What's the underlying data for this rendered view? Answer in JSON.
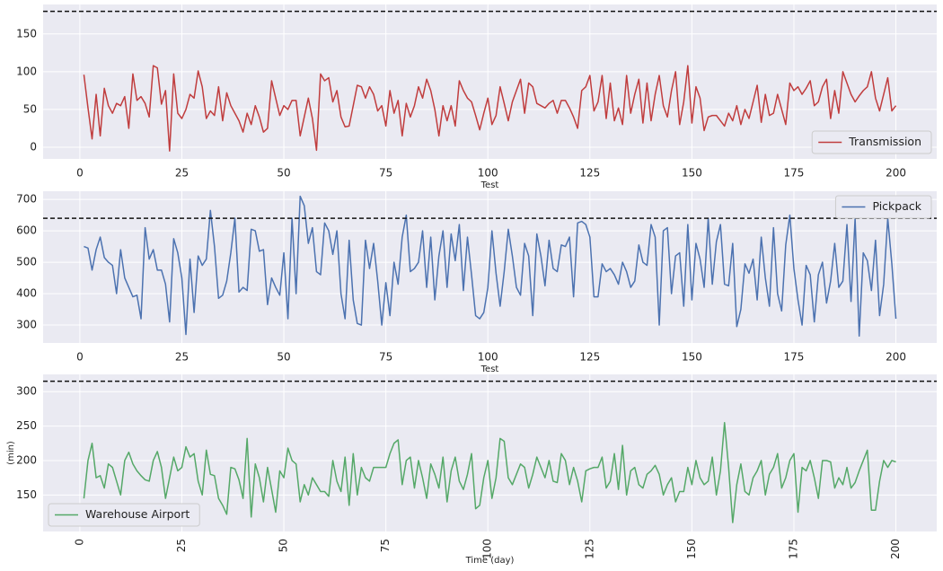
{
  "chart_data": [
    {
      "type": "line",
      "xlabel": "Test",
      "legend": "lower right",
      "grid": true,
      "hline": 180,
      "xlim": [
        -9,
        210
      ],
      "xticks": [
        0,
        25,
        50,
        75,
        100,
        125,
        150,
        175,
        200
      ],
      "ylim": [
        -15.5,
        189
      ],
      "yticks": [
        0,
        50,
        100,
        150
      ],
      "x": [
        1,
        2,
        3,
        4,
        5,
        6,
        7,
        8,
        9,
        10,
        11,
        12,
        13,
        14,
        15,
        16,
        17,
        18,
        19,
        20,
        21,
        22,
        23,
        24,
        25,
        26,
        27,
        28,
        29,
        30,
        31,
        32,
        33,
        34,
        35,
        36,
        37,
        38,
        39,
        40,
        41,
        42,
        43,
        44,
        45,
        46,
        47,
        48,
        49,
        50,
        51,
        52,
        53,
        54,
        55,
        56,
        57,
        58,
        59,
        60,
        61,
        62,
        63,
        64,
        65,
        66,
        67,
        68,
        69,
        70,
        71,
        72,
        73,
        74,
        75,
        76,
        77,
        78,
        79,
        80,
        81,
        82,
        83,
        84,
        85,
        86,
        87,
        88,
        89,
        90,
        91,
        92,
        93,
        94,
        95,
        96,
        97,
        98,
        99,
        100,
        101,
        102,
        103,
        104,
        105,
        106,
        107,
        108,
        109,
        110,
        111,
        112,
        113,
        114,
        115,
        116,
        117,
        118,
        119,
        120,
        121,
        122,
        123,
        124,
        125,
        126,
        127,
        128,
        129,
        130,
        131,
        132,
        133,
        134,
        135,
        136,
        137,
        138,
        139,
        140,
        141,
        142,
        143,
        144,
        145,
        146,
        147,
        148,
        149,
        150,
        151,
        152,
        153,
        154,
        155,
        156,
        157,
        158,
        159,
        160,
        161,
        162,
        163,
        164,
        165,
        166,
        167,
        168,
        169,
        170,
        171,
        172,
        173,
        174,
        175,
        176,
        177,
        178,
        179,
        180,
        181,
        182,
        183,
        184,
        185,
        186,
        187,
        188,
        189,
        190,
        191,
        192,
        193,
        194,
        195,
        196,
        197,
        198,
        199,
        200
      ],
      "series": [
        {
          "name": "Transmission",
          "color": "#c03d3e",
          "values": [
            96,
            52,
            11,
            70,
            15,
            78,
            55,
            45,
            58,
            55,
            67,
            25,
            97,
            62,
            67,
            58,
            40,
            108,
            105,
            57,
            75,
            -5,
            97,
            45,
            38,
            50,
            70,
            65,
            101,
            80,
            38,
            48,
            42,
            80,
            35,
            72,
            55,
            45,
            35,
            20,
            45,
            30,
            55,
            40,
            20,
            25,
            88,
            65,
            42,
            55,
            50,
            62,
            62,
            15,
            40,
            65,
            38,
            -4,
            97,
            88,
            92,
            60,
            75,
            40,
            27,
            28,
            55,
            82,
            80,
            65,
            80,
            70,
            48,
            55,
            28,
            75,
            45,
            62,
            15,
            58,
            40,
            55,
            80,
            65,
            90,
            75,
            50,
            15,
            55,
            35,
            55,
            28,
            88,
            75,
            65,
            60,
            42,
            23,
            45,
            65,
            30,
            42,
            80,
            58,
            35,
            60,
            75,
            90,
            45,
            85,
            80,
            58,
            55,
            52,
            58,
            62,
            45,
            62,
            62,
            52,
            40,
            25,
            75,
            80,
            95,
            48,
            60,
            95,
            38,
            85,
            35,
            52,
            30,
            95,
            45,
            70,
            90,
            32,
            85,
            35,
            70,
            95,
            55,
            40,
            75,
            100,
            30,
            60,
            108,
            32,
            80,
            65,
            22,
            40,
            42,
            42,
            35,
            28,
            45,
            35,
            55,
            30,
            50,
            38,
            60,
            82,
            33,
            70,
            42,
            45,
            70,
            50,
            30,
            85,
            75,
            80,
            70,
            78,
            88,
            55,
            60,
            80,
            90,
            38,
            75,
            45,
            100,
            85,
            70,
            60,
            68,
            75,
            80,
            100,
            65,
            48,
            70,
            92,
            48,
            55
          ]
        }
      ]
    },
    {
      "type": "line",
      "xlabel": "Test",
      "legend": "upper right",
      "grid": true,
      "hline": 640,
      "xlim": [
        -9,
        210
      ],
      "xticks": [
        0,
        25,
        50,
        75,
        100,
        125,
        150,
        175,
        200
      ],
      "ylim": [
        243,
        726
      ],
      "yticks": [
        300,
        400,
        500,
        600,
        700
      ],
      "x": [
        1,
        2,
        3,
        4,
        5,
        6,
        7,
        8,
        9,
        10,
        11,
        12,
        13,
        14,
        15,
        16,
        17,
        18,
        19,
        20,
        21,
        22,
        23,
        24,
        25,
        26,
        27,
        28,
        29,
        30,
        31,
        32,
        33,
        34,
        35,
        36,
        37,
        38,
        39,
        40,
        41,
        42,
        43,
        44,
        45,
        46,
        47,
        48,
        49,
        50,
        51,
        52,
        53,
        54,
        55,
        56,
        57,
        58,
        59,
        60,
        61,
        62,
        63,
        64,
        65,
        66,
        67,
        68,
        69,
        70,
        71,
        72,
        73,
        74,
        75,
        76,
        77,
        78,
        79,
        80,
        81,
        82,
        83,
        84,
        85,
        86,
        87,
        88,
        89,
        90,
        91,
        92,
        93,
        94,
        95,
        96,
        97,
        98,
        99,
        100,
        101,
        102,
        103,
        104,
        105,
        106,
        107,
        108,
        109,
        110,
        111,
        112,
        113,
        114,
        115,
        116,
        117,
        118,
        119,
        120,
        121,
        122,
        123,
        124,
        125,
        126,
        127,
        128,
        129,
        130,
        131,
        132,
        133,
        134,
        135,
        136,
        137,
        138,
        139,
        140,
        141,
        142,
        143,
        144,
        145,
        146,
        147,
        148,
        149,
        150,
        151,
        152,
        153,
        154,
        155,
        156,
        157,
        158,
        159,
        160,
        161,
        162,
        163,
        164,
        165,
        166,
        167,
        168,
        169,
        170,
        171,
        172,
        173,
        174,
        175,
        176,
        177,
        178,
        179,
        180,
        181,
        182,
        183,
        184,
        185,
        186,
        187,
        188,
        189,
        190,
        191,
        192,
        193,
        194,
        195,
        196,
        197,
        198,
        199,
        200
      ],
      "series": [
        {
          "name": "Pickpack",
          "color": "#4c72b0",
          "values": [
            550,
            545,
            475,
            540,
            580,
            515,
            500,
            490,
            400,
            540,
            450,
            420,
            390,
            395,
            320,
            610,
            510,
            540,
            475,
            475,
            430,
            310,
            575,
            530,
            450,
            270,
            510,
            340,
            520,
            490,
            510,
            665,
            550,
            385,
            395,
            440,
            530,
            640,
            405,
            420,
            410,
            605,
            600,
            535,
            540,
            365,
            450,
            420,
            395,
            530,
            320,
            640,
            400,
            710,
            680,
            560,
            610,
            470,
            460,
            625,
            600,
            525,
            600,
            400,
            320,
            570,
            380,
            305,
            300,
            570,
            480,
            560,
            440,
            300,
            435,
            330,
            500,
            430,
            580,
            650,
            470,
            480,
            500,
            600,
            420,
            580,
            380,
            520,
            600,
            420,
            590,
            505,
            620,
            410,
            580,
            460,
            330,
            320,
            340,
            420,
            600,
            465,
            360,
            470,
            605,
            520,
            420,
            395,
            560,
            520,
            330,
            590,
            520,
            425,
            570,
            480,
            470,
            555,
            550,
            580,
            390,
            625,
            630,
            620,
            580,
            390,
            390,
            495,
            470,
            480,
            460,
            430,
            500,
            470,
            420,
            440,
            555,
            500,
            490,
            620,
            580,
            300,
            600,
            610,
            400,
            520,
            530,
            360,
            620,
            380,
            560,
            510,
            420,
            640,
            430,
            565,
            620,
            430,
            425,
            560,
            295,
            350,
            495,
            465,
            510,
            380,
            580,
            450,
            360,
            610,
            400,
            345,
            555,
            650,
            480,
            380,
            300,
            490,
            460,
            310,
            460,
            500,
            370,
            440,
            560,
            420,
            440,
            620,
            375,
            640,
            265,
            530,
            505,
            410,
            570,
            330,
            430,
            640,
            495,
            320
          ]
        }
      ]
    },
    {
      "type": "line",
      "xlabel": "Time (day)",
      "ylabel": "(min)",
      "legend": "lower left",
      "grid": true,
      "hline": 315,
      "xtick_rotation": 90,
      "xlim": [
        -9,
        210
      ],
      "xticks": [
        0,
        25,
        50,
        75,
        100,
        125,
        150,
        175,
        200
      ],
      "ylim": [
        97,
        325
      ],
      "yticks": [
        150,
        200,
        250,
        300
      ],
      "x": [
        1,
        2,
        3,
        4,
        5,
        6,
        7,
        8,
        9,
        10,
        11,
        12,
        13,
        14,
        15,
        16,
        17,
        18,
        19,
        20,
        21,
        22,
        23,
        24,
        25,
        26,
        27,
        28,
        29,
        30,
        31,
        32,
        33,
        34,
        35,
        36,
        37,
        38,
        39,
        40,
        41,
        42,
        43,
        44,
        45,
        46,
        47,
        48,
        49,
        50,
        51,
        52,
        53,
        54,
        55,
        56,
        57,
        58,
        59,
        60,
        61,
        62,
        63,
        64,
        65,
        66,
        67,
        68,
        69,
        70,
        71,
        72,
        73,
        74,
        75,
        76,
        77,
        78,
        79,
        80,
        81,
        82,
        83,
        84,
        85,
        86,
        87,
        88,
        89,
        90,
        91,
        92,
        93,
        94,
        95,
        96,
        97,
        98,
        99,
        100,
        101,
        102,
        103,
        104,
        105,
        106,
        107,
        108,
        109,
        110,
        111,
        112,
        113,
        114,
        115,
        116,
        117,
        118,
        119,
        120,
        121,
        122,
        123,
        124,
        125,
        126,
        127,
        128,
        129,
        130,
        131,
        132,
        133,
        134,
        135,
        136,
        137,
        138,
        139,
        140,
        141,
        142,
        143,
        144,
        145,
        146,
        147,
        148,
        149,
        150,
        151,
        152,
        153,
        154,
        155,
        156,
        157,
        158,
        159,
        160,
        161,
        162,
        163,
        164,
        165,
        166,
        167,
        168,
        169,
        170,
        171,
        172,
        173,
        174,
        175,
        176,
        177,
        178,
        179,
        180,
        181,
        182,
        183,
        184,
        185,
        186,
        187,
        188,
        189,
        190,
        191,
        192,
        193,
        194,
        195,
        196,
        197,
        198,
        199,
        200
      ],
      "series": [
        {
          "name": "Warehouse Airport",
          "color": "#55a868",
          "values": [
            145,
            200,
            225,
            175,
            178,
            160,
            195,
            190,
            170,
            150,
            200,
            212,
            195,
            185,
            178,
            172,
            170,
            200,
            213,
            190,
            145,
            175,
            205,
            185,
            190,
            220,
            205,
            210,
            170,
            150,
            215,
            180,
            178,
            145,
            135,
            122,
            190,
            188,
            172,
            145,
            232,
            118,
            195,
            175,
            140,
            190,
            158,
            125,
            185,
            175,
            218,
            200,
            195,
            140,
            165,
            150,
            175,
            165,
            155,
            155,
            148,
            200,
            170,
            155,
            205,
            135,
            210,
            150,
            190,
            175,
            170,
            190,
            190,
            190,
            190,
            210,
            225,
            230,
            165,
            200,
            205,
            160,
            200,
            175,
            145,
            195,
            180,
            160,
            205,
            140,
            185,
            205,
            170,
            158,
            180,
            210,
            130,
            135,
            175,
            200,
            145,
            175,
            232,
            228,
            175,
            165,
            180,
            195,
            190,
            160,
            180,
            205,
            190,
            175,
            200,
            170,
            168,
            210,
            200,
            165,
            190,
            170,
            140,
            185,
            188,
            190,
            190,
            205,
            160,
            170,
            210,
            158,
            222,
            150,
            185,
            190,
            165,
            160,
            180,
            185,
            193,
            180,
            150,
            165,
            175,
            140,
            155,
            155,
            190,
            165,
            200,
            175,
            165,
            170,
            205,
            150,
            185,
            255,
            190,
            110,
            165,
            195,
            155,
            150,
            175,
            185,
            200,
            150,
            180,
            190,
            210,
            160,
            175,
            200,
            210,
            125,
            190,
            185,
            200,
            175,
            145,
            200,
            200,
            198,
            160,
            175,
            165,
            190,
            160,
            168,
            185,
            200,
            215,
            128,
            128,
            170,
            200,
            190,
            200,
            198
          ]
        }
      ]
    }
  ]
}
